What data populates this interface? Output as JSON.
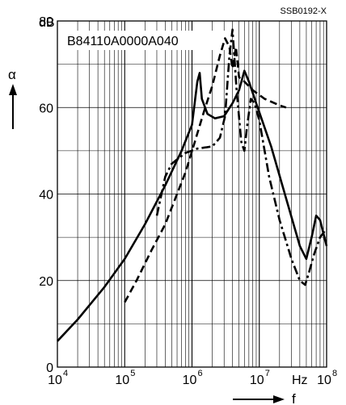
{
  "chart_data": {
    "type": "line",
    "title": "B84110A0000A040",
    "code": "SSB0192-X",
    "y_unit": "dB",
    "ylabel": "α",
    "xlabel": "f",
    "x_unit": "Hz",
    "x_scale": "log",
    "xlim": [
      10000,
      100000000
    ],
    "ylim": [
      0,
      80
    ],
    "grid": true,
    "y_ticks": [
      {
        "value": 0,
        "label": "0"
      },
      {
        "value": 20,
        "label": "20"
      },
      {
        "value": 40,
        "label": "40"
      },
      {
        "value": 60,
        "label": "60"
      },
      {
        "value": 80,
        "label": "80"
      }
    ],
    "x_ticks": [
      {
        "value": 10000,
        "base": "10",
        "exp": "4"
      },
      {
        "value": 100000,
        "base": "10",
        "exp": "5"
      },
      {
        "value": 1000000,
        "base": "10",
        "exp": "6"
      },
      {
        "value": 10000000,
        "base": "10",
        "exp": "7"
      },
      {
        "value": 100000000,
        "base": "10",
        "exp": "8"
      }
    ],
    "series": [
      {
        "style": "solid",
        "points": [
          [
            10000,
            6
          ],
          [
            20000,
            11
          ],
          [
            50000,
            18.5
          ],
          [
            100000,
            25
          ],
          [
            200000,
            33
          ],
          [
            400000,
            42
          ],
          [
            700000,
            50
          ],
          [
            1000000,
            56
          ],
          [
            1200000,
            66
          ],
          [
            1300000,
            68
          ],
          [
            1400000,
            62
          ],
          [
            1700000,
            58.5
          ],
          [
            2200000,
            57.5
          ],
          [
            3000000,
            58
          ],
          [
            4000000,
            61
          ],
          [
            5000000,
            64
          ],
          [
            6000000,
            68.5
          ],
          [
            7000000,
            66
          ],
          [
            9000000,
            61
          ],
          [
            15000000,
            51
          ],
          [
            25000000,
            39
          ],
          [
            40000000,
            28
          ],
          [
            50000000,
            25
          ],
          [
            60000000,
            30
          ],
          [
            70000000,
            35
          ],
          [
            80000000,
            34
          ],
          [
            100000000,
            28
          ]
        ]
      },
      {
        "style": "dashed",
        "points": [
          [
            100000,
            15
          ],
          [
            150000,
            20
          ],
          [
            250000,
            27
          ],
          [
            400000,
            33
          ],
          [
            600000,
            40
          ],
          [
            800000,
            45
          ],
          [
            1100000,
            52
          ],
          [
            1500000,
            59
          ],
          [
            2000000,
            65
          ],
          [
            2600000,
            72
          ],
          [
            3100000,
            76
          ],
          [
            3600000,
            74
          ],
          [
            4000000,
            69
          ],
          [
            4500000,
            74
          ],
          [
            5000000,
            67
          ],
          [
            6000000,
            66
          ],
          [
            8000000,
            64
          ],
          [
            12000000,
            62
          ],
          [
            20000000,
            60.5
          ],
          [
            25000000,
            60
          ]
        ]
      },
      {
        "style": "dash-dot",
        "points": [
          [
            300000,
            35
          ],
          [
            400000,
            44
          ],
          [
            500000,
            47
          ],
          [
            600000,
            48
          ],
          [
            800000,
            49.5
          ],
          [
            1200000,
            50.5
          ],
          [
            2000000,
            51
          ],
          [
            2600000,
            53
          ],
          [
            3100000,
            58
          ],
          [
            3600000,
            72
          ],
          [
            4000000,
            78
          ],
          [
            4600000,
            64
          ],
          [
            5400000,
            52
          ],
          [
            6000000,
            50
          ],
          [
            6500000,
            55
          ],
          [
            7500000,
            62
          ],
          [
            8500000,
            61
          ],
          [
            10000000,
            57
          ],
          [
            14000000,
            44
          ],
          [
            20000000,
            34
          ],
          [
            30000000,
            25
          ],
          [
            40000000,
            20
          ],
          [
            48000000,
            19
          ],
          [
            55000000,
            22
          ],
          [
            65000000,
            26
          ],
          [
            80000000,
            30
          ],
          [
            100000000,
            32
          ]
        ]
      }
    ]
  }
}
